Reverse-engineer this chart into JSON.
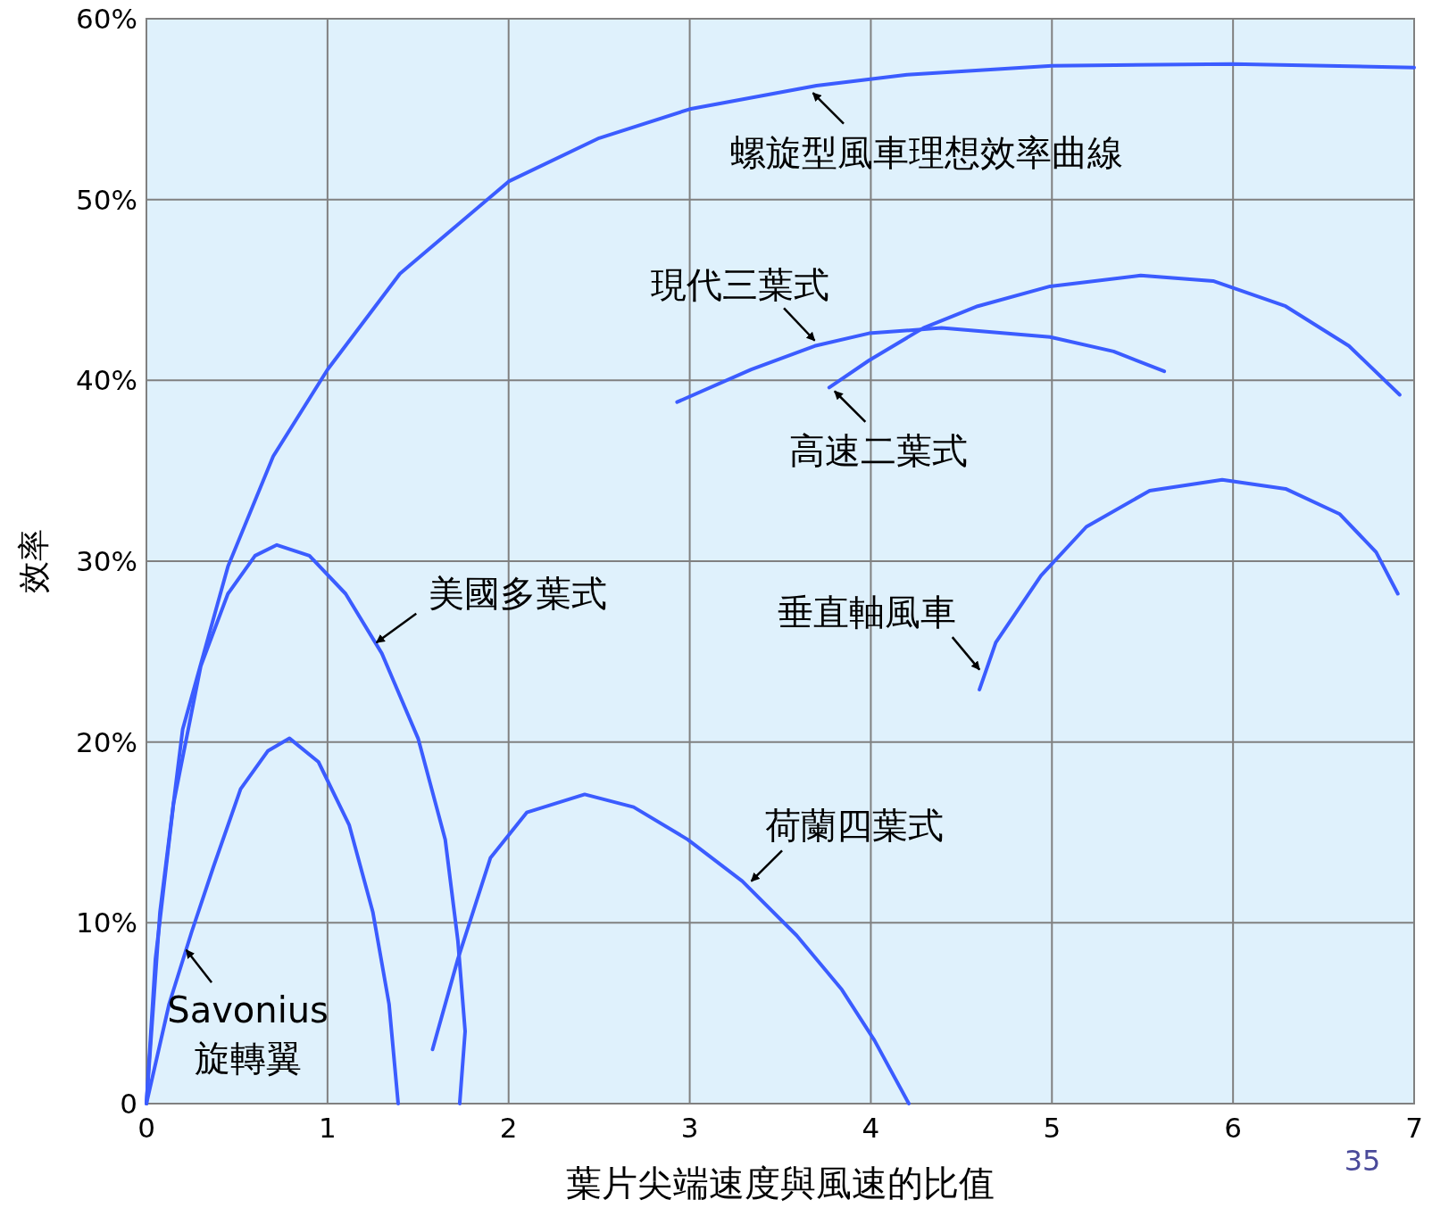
{
  "chart_data": {
    "type": "line",
    "xlabel": "葉片尖端速度與風速的比值",
    "ylabel": "效率",
    "xlim": [
      0,
      7
    ],
    "ylim": [
      0,
      60
    ],
    "xticks": [
      0,
      1,
      2,
      3,
      4,
      5,
      6,
      7
    ],
    "yticks": [
      {
        "value": 0,
        "label": "0"
      },
      {
        "value": 10,
        "label": "10%"
      },
      {
        "value": 20,
        "label": "20%"
      },
      {
        "value": 30,
        "label": "30%"
      },
      {
        "value": 40,
        "label": "40%"
      },
      {
        "value": 50,
        "label": "50%"
      },
      {
        "value": 60,
        "label": "60%"
      }
    ],
    "grid": true,
    "marker": "none",
    "line_style": "solid",
    "series": [
      {
        "name": "螺旋型風車理想效率曲線",
        "color": "#3b5cff",
        "x": [
          0,
          0.075,
          0.2,
          0.45,
          0.7,
          1.0,
          1.4,
          2.0,
          2.5,
          3.0,
          3.7,
          4.2,
          5.0,
          6.0,
          7.0
        ],
        "values": [
          0,
          10.6,
          20.7,
          29.7,
          35.8,
          40.6,
          45.9,
          51,
          53.4,
          55,
          56.3,
          56.9,
          57.4,
          57.5,
          57.3
        ]
      },
      {
        "name": "現代三葉式",
        "color": "#3b5cff",
        "x": [
          2.93,
          3.34,
          3.69,
          3.99,
          4.39,
          4.99,
          5.34,
          5.62
        ],
        "values": [
          38.8,
          40.6,
          41.9,
          42.6,
          42.9,
          42.4,
          41.6,
          40.5
        ]
      },
      {
        "name": "高速二葉式",
        "color": "#3b5cff",
        "x": [
          3.77,
          3.99,
          4.29,
          4.59,
          4.99,
          5.49,
          5.89,
          6.29,
          6.64,
          6.92
        ],
        "values": [
          39.6,
          41.1,
          42.9,
          44.1,
          45.2,
          45.8,
          45.5,
          44.1,
          41.9,
          39.2
        ]
      },
      {
        "name": "垂直軸風車",
        "color": "#3b5cff",
        "x": [
          4.6,
          4.69,
          4.94,
          5.19,
          5.54,
          5.94,
          6.29,
          6.59,
          6.79,
          6.91
        ],
        "values": [
          22.9,
          25.5,
          29.2,
          31.9,
          33.9,
          34.5,
          34.0,
          32.6,
          30.5,
          28.2
        ]
      },
      {
        "name": "美國多葉式",
        "color": "#3b5cff",
        "x": [
          0,
          0.05,
          0.15,
          0.3,
          0.45,
          0.6,
          0.72,
          0.9,
          1.1,
          1.3,
          1.5,
          1.65,
          1.72,
          1.76,
          1.73
        ],
        "values": [
          0,
          8.0,
          16.6,
          24.2,
          28.2,
          30.3,
          30.9,
          30.3,
          28.2,
          24.9,
          20.2,
          14.6,
          9.0,
          4.0,
          0
        ]
      },
      {
        "name": "Savonius 旋轉翼",
        "color": "#3b5cff",
        "x": [
          0,
          0.125,
          0.25,
          0.37,
          0.52,
          0.67,
          0.79,
          0.95,
          1.12,
          1.25,
          1.34,
          1.39
        ],
        "values": [
          0,
          5.5,
          9.5,
          13.1,
          17.4,
          19.5,
          20.2,
          18.9,
          15.4,
          10.6,
          5.5,
          0
        ]
      },
      {
        "name": "荷蘭四葉式",
        "color": "#3b5cff",
        "x": [
          1.58,
          1.72,
          1.9,
          2.1,
          2.42,
          2.69,
          2.99,
          3.29,
          3.59,
          3.84,
          4.02,
          4.21
        ],
        "values": [
          3.0,
          8.0,
          13.6,
          16.1,
          17.1,
          16.4,
          14.6,
          12.3,
          9.3,
          6.3,
          3.5,
          0
        ]
      }
    ],
    "annotations": [
      "35"
    ]
  }
}
